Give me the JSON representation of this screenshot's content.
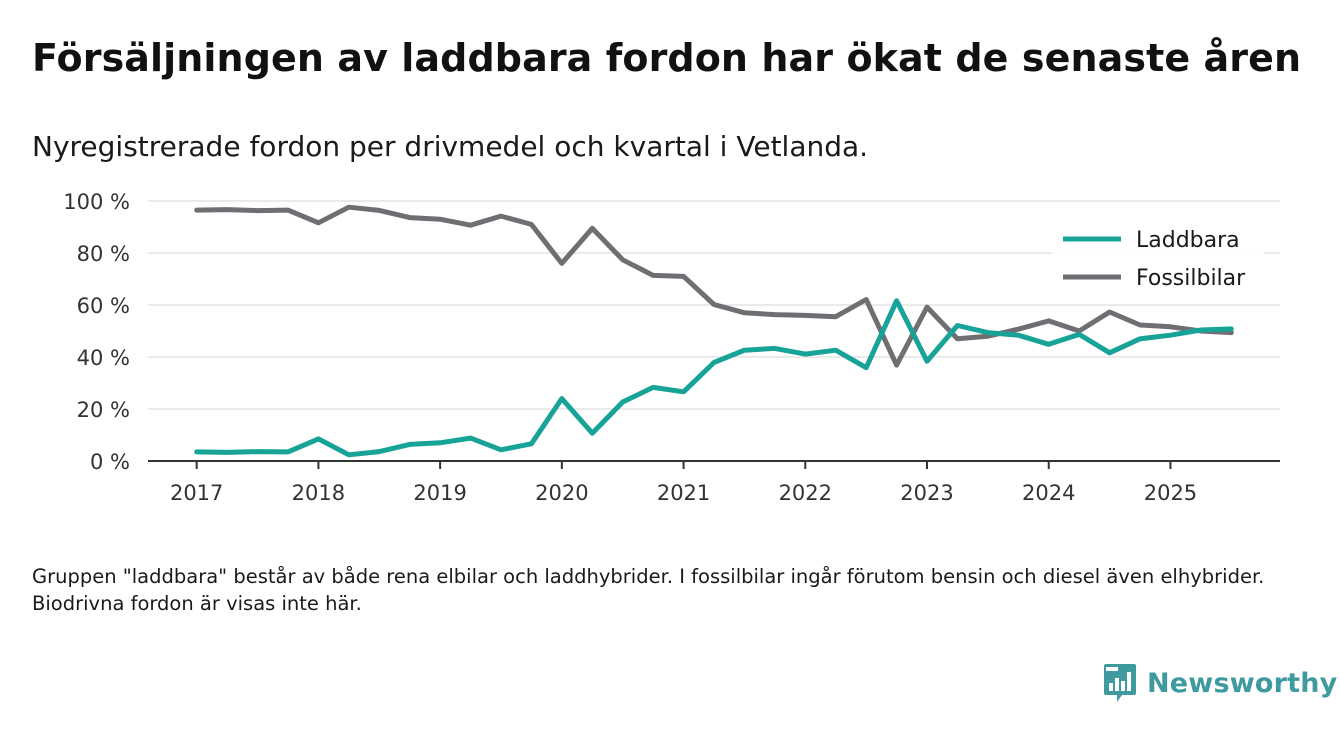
{
  "header": {
    "title": "Försäljningen av laddbara fordon har ökat de senaste åren",
    "subtitle": "Nyregistrerade fordon per drivmedel och kvartal i Vetlanda."
  },
  "footnote": "Gruppen \"laddbara\" består av både rena elbilar och laddhybrider. I fossilbilar ingår förutom bensin och diesel även elhybrider. Biodrivna fordon är visas inte här.",
  "brand": {
    "name": "Newsworthy",
    "color": "#3f9aa0"
  },
  "colors": {
    "grid": "#dddddd",
    "axis": "#333333"
  },
  "chart_data": {
    "type": "line",
    "title": "Försäljningen av laddbara fordon har ökat de senaste åren",
    "subtitle": "Nyregistrerade fordon per drivmedel och kvartal i Vetlanda.",
    "xlabel": "",
    "ylabel": "",
    "xlim": [
      2016.6,
      2025.9
    ],
    "ylim": [
      0,
      100
    ],
    "x_ticks": [
      2017,
      2018,
      2019,
      2020,
      2021,
      2022,
      2023,
      2024,
      2025
    ],
    "x_tick_labels": [
      "2017",
      "2018",
      "2019",
      "2020",
      "2021",
      "2022",
      "2023",
      "2024",
      "2025"
    ],
    "y_ticks": [
      0,
      20,
      40,
      60,
      80,
      100
    ],
    "y_tick_labels": [
      "0 %",
      "20 %",
      "40 %",
      "60 %",
      "80 %",
      "100 %"
    ],
    "grid": true,
    "legend_position": "top-right",
    "x": [
      2017.0,
      2017.25,
      2017.5,
      2017.75,
      2018.0,
      2018.25,
      2018.5,
      2018.75,
      2019.0,
      2019.25,
      2019.5,
      2019.75,
      2020.0,
      2020.25,
      2020.5,
      2020.75,
      2021.0,
      2021.25,
      2021.5,
      2021.75,
      2022.0,
      2022.25,
      2022.5,
      2022.75,
      2023.0,
      2023.25,
      2023.5,
      2023.75,
      2024.0,
      2024.25,
      2024.5,
      2024.75,
      2025.0,
      2025.25,
      2025.5
    ],
    "series": [
      {
        "name": "Laddbara",
        "color": "#17a398",
        "values": [
          3.5,
          3.3,
          3.6,
          3.5,
          8.5,
          2.4,
          3.6,
          6.4,
          7.0,
          8.8,
          4.3,
          6.6,
          24.0,
          10.7,
          22.7,
          28.3,
          26.6,
          37.9,
          42.6,
          43.3,
          41.1,
          42.6,
          35.9,
          61.6,
          38.4,
          52.1,
          49.4,
          48.4,
          44.9,
          48.7,
          41.6,
          47.0,
          48.4,
          50.4,
          50.8
        ]
      },
      {
        "name": "Fossilbilar",
        "color": "#6e6e73",
        "values": [
          96.5,
          96.7,
          96.3,
          96.5,
          91.6,
          97.6,
          96.4,
          93.6,
          93.0,
          90.7,
          94.2,
          91.0,
          76.0,
          89.5,
          77.4,
          71.4,
          71.0,
          60.2,
          57.0,
          56.3,
          56.0,
          55.5,
          62.1,
          36.9,
          59.2,
          47.0,
          48.0,
          50.7,
          53.9,
          50.0,
          57.3,
          52.3,
          51.6,
          50.0,
          49.4
        ]
      }
    ]
  }
}
